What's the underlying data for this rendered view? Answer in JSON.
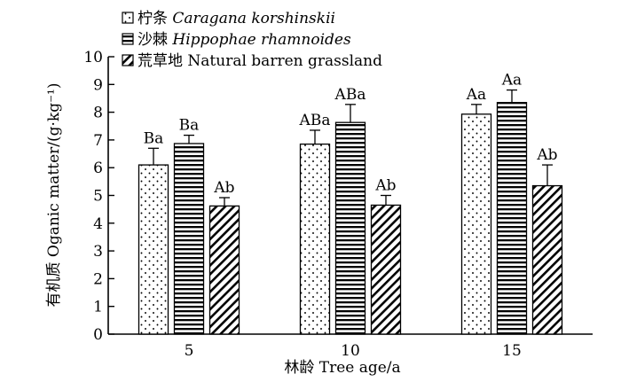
{
  "chart_data": {
    "type": "bar",
    "xlabel": "林龄 Tree age/a",
    "ylabel": "有机质 Oganic matter/(g·kg⁻¹)",
    "ylim": [
      0,
      10
    ],
    "yticks": [
      0,
      1,
      2,
      3,
      4,
      5,
      6,
      7,
      8,
      9,
      10
    ],
    "categories": [
      "5",
      "10",
      "15"
    ],
    "legend_position": "top-left",
    "series": [
      {
        "name_cn": "柠条",
        "name_latin": "Caragana korshinskii",
        "pattern": "dots",
        "values": [
          6.1,
          6.85,
          7.93
        ],
        "errors": [
          0.6,
          0.5,
          0.35
        ],
        "labels": [
          "Ba",
          "ABa",
          "Aa"
        ]
      },
      {
        "name_cn": "沙棘",
        "name_latin": "Hippophae rhamnoides",
        "pattern": "horizontal-lines",
        "values": [
          6.87,
          7.63,
          8.35
        ],
        "errors": [
          0.3,
          0.65,
          0.45
        ],
        "labels": [
          "Ba",
          "ABa",
          "Aa"
        ]
      },
      {
        "name_cn": "荒草地",
        "name_latin": "Natural barren grassland",
        "pattern": "diagonal-lines",
        "values": [
          4.62,
          4.65,
          5.35
        ],
        "errors": [
          0.3,
          0.35,
          0.75
        ],
        "labels": [
          "Ab",
          "Ab",
          "Ab"
        ]
      }
    ]
  }
}
